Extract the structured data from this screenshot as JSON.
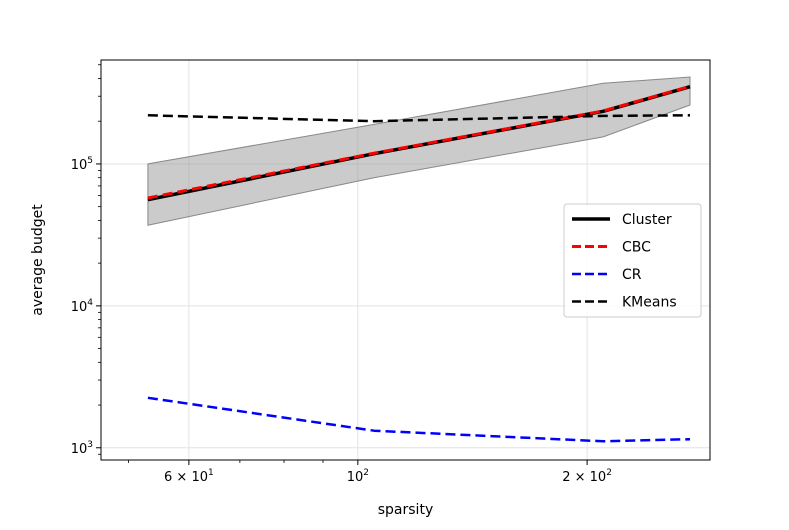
{
  "chart_data": {
    "type": "line",
    "title": "",
    "xlabel": "sparsity",
    "ylabel": "average budget",
    "xscale": "log",
    "yscale": "log",
    "xlim": [
      46,
      290
    ],
    "ylim": [
      820,
      540000
    ],
    "grid": true,
    "legend_position": "center-right",
    "x_ticks": [
      {
        "value": 60,
        "base": "6 × 10",
        "exp": "1"
      },
      {
        "value": 100,
        "base": "10",
        "exp": "2"
      },
      {
        "value": 200,
        "base": "2 × 10",
        "exp": "2"
      }
    ],
    "y_ticks": [
      {
        "value": 1000,
        "base": "10",
        "exp": "3"
      },
      {
        "value": 10000,
        "base": "10",
        "exp": "4"
      },
      {
        "value": 100000,
        "base": "10",
        "exp": "5"
      }
    ],
    "x": [
      53,
      105,
      210,
      273
    ],
    "band": {
      "series": "Cluster",
      "lower": [
        37000,
        80000,
        155000,
        260000
      ],
      "upper": [
        100000,
        190000,
        370000,
        410000
      ],
      "color": "#a0a0a0"
    },
    "series": [
      {
        "name": "Cluster",
        "values": [
          56000,
          118000,
          235000,
          350000
        ],
        "color": "#000000",
        "style": "solid"
      },
      {
        "name": "CBC",
        "values": [
          57500,
          119000,
          236000,
          352000
        ],
        "color": "#ff0000",
        "style": "dashed"
      },
      {
        "name": "CR",
        "values": [
          2250,
          1320,
          1110,
          1150
        ],
        "color": "#0000ff",
        "style": "dashed"
      },
      {
        "name": "KMeans",
        "values": [
          220000,
          200000,
          218000,
          220000
        ],
        "color": "#000000",
        "style": "dashed"
      }
    ]
  }
}
